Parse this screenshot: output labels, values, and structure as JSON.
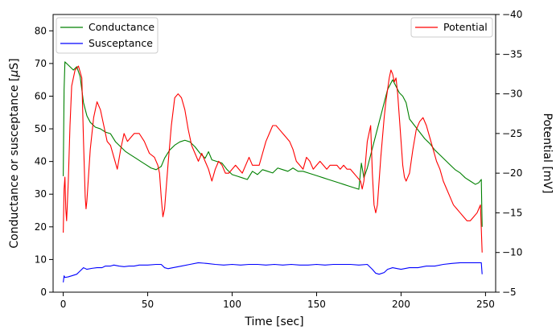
{
  "chart_data": {
    "type": "line",
    "xlabel": "Time [sec]",
    "ylabel_left": "Conductance or susceptance [",
    "ylabel_left_mu": "μ",
    "ylabel_left_end": "S]",
    "ylabel_right": "Potential [mV]",
    "xlim": [
      -6,
      256
    ],
    "ylim_left": [
      0,
      85
    ],
    "ylim_right": [
      -5,
      -40
    ],
    "right_axis_inverted": true,
    "x_ticks": [
      0,
      50,
      100,
      150,
      200,
      250
    ],
    "y_ticks_left": [
      0,
      10,
      20,
      30,
      40,
      50,
      60,
      70,
      80
    ],
    "y_ticks_right": [
      -5,
      -10,
      -15,
      -20,
      -25,
      -30,
      -35,
      -40
    ],
    "legends": [
      {
        "position": "top-left",
        "entries": [
          "Conductance",
          "Susceptance"
        ]
      },
      {
        "position": "top-right",
        "entries": [
          "Potential"
        ]
      }
    ],
    "grid": false,
    "series": [
      {
        "name": "Conductance",
        "axis": "left",
        "color": "#008000",
        "points": [
          [
            0,
            35.5
          ],
          [
            0.5,
            62
          ],
          [
            1,
            70.5
          ],
          [
            3,
            69.5
          ],
          [
            6,
            68
          ],
          [
            8,
            69
          ],
          [
            10,
            66
          ],
          [
            12,
            58
          ],
          [
            14,
            54
          ],
          [
            16,
            52
          ],
          [
            19,
            50.5
          ],
          [
            22,
            50
          ],
          [
            25,
            49
          ],
          [
            28,
            48.5
          ],
          [
            31,
            46
          ],
          [
            34,
            44.5
          ],
          [
            37,
            43
          ],
          [
            40,
            42
          ],
          [
            43,
            41
          ],
          [
            46,
            40
          ],
          [
            49,
            39
          ],
          [
            52,
            38
          ],
          [
            55,
            37.5
          ],
          [
            58,
            38.5
          ],
          [
            60,
            41
          ],
          [
            63,
            43.5
          ],
          [
            66,
            45
          ],
          [
            69,
            46
          ],
          [
            72,
            46.5
          ],
          [
            75,
            46
          ],
          [
            78,
            44.5
          ],
          [
            81,
            42.5
          ],
          [
            84,
            41
          ],
          [
            86,
            43
          ],
          [
            88,
            40.5
          ],
          [
            91,
            40
          ],
          [
            94,
            39.5
          ],
          [
            97,
            37.5
          ],
          [
            100,
            36
          ],
          [
            103,
            35.5
          ],
          [
            106,
            35
          ],
          [
            109,
            34.5
          ],
          [
            112,
            37
          ],
          [
            115,
            36
          ],
          [
            118,
            37.5
          ],
          [
            121,
            37
          ],
          [
            124,
            36.5
          ],
          [
            127,
            38
          ],
          [
            130,
            37.5
          ],
          [
            133,
            37
          ],
          [
            136,
            38
          ],
          [
            139,
            37
          ],
          [
            142,
            37
          ],
          [
            145,
            36.5
          ],
          [
            148,
            36
          ],
          [
            151,
            35.5
          ],
          [
            154,
            35
          ],
          [
            157,
            34.5
          ],
          [
            160,
            34
          ],
          [
            163,
            33.5
          ],
          [
            166,
            33
          ],
          [
            169,
            32.5
          ],
          [
            172,
            32
          ],
          [
            175,
            31.5
          ],
          [
            176.5,
            39.5
          ],
          [
            178,
            35
          ],
          [
            180,
            38
          ],
          [
            183,
            44
          ],
          [
            186,
            50
          ],
          [
            189,
            56
          ],
          [
            192,
            62
          ],
          [
            195,
            65
          ],
          [
            197,
            63
          ],
          [
            199,
            61
          ],
          [
            201,
            60
          ],
          [
            203,
            58
          ],
          [
            205,
            53
          ],
          [
            208,
            51
          ],
          [
            211,
            49
          ],
          [
            214,
            47
          ],
          [
            217,
            45.5
          ],
          [
            220,
            43.5
          ],
          [
            223,
            42
          ],
          [
            226,
            40.5
          ],
          [
            229,
            39
          ],
          [
            232,
            37.5
          ],
          [
            235,
            36.5
          ],
          [
            238,
            35
          ],
          [
            241,
            34
          ],
          [
            244,
            33
          ],
          [
            246,
            33.5
          ],
          [
            247.5,
            34.5
          ],
          [
            248,
            20
          ]
        ]
      },
      {
        "name": "Susceptance",
        "axis": "left",
        "color": "#0000ff",
        "points": [
          [
            0,
            3
          ],
          [
            0.5,
            5
          ],
          [
            1,
            4.5
          ],
          [
            3,
            4.7
          ],
          [
            5,
            5
          ],
          [
            8,
            5.5
          ],
          [
            10,
            6.5
          ],
          [
            12,
            7.5
          ],
          [
            14,
            7
          ],
          [
            17,
            7.3
          ],
          [
            20,
            7.5
          ],
          [
            23,
            7.5
          ],
          [
            25,
            8
          ],
          [
            28,
            8
          ],
          [
            30,
            8.3
          ],
          [
            33,
            8
          ],
          [
            36,
            7.8
          ],
          [
            39,
            8
          ],
          [
            42,
            8
          ],
          [
            45,
            8.3
          ],
          [
            50,
            8.3
          ],
          [
            55,
            8.5
          ],
          [
            58,
            8.5
          ],
          [
            60,
            7.5
          ],
          [
            62,
            7.2
          ],
          [
            65,
            7.5
          ],
          [
            70,
            8
          ],
          [
            75,
            8.5
          ],
          [
            80,
            9
          ],
          [
            85,
            8.8
          ],
          [
            90,
            8.5
          ],
          [
            95,
            8.3
          ],
          [
            100,
            8.5
          ],
          [
            105,
            8.3
          ],
          [
            110,
            8.5
          ],
          [
            115,
            8.5
          ],
          [
            120,
            8.3
          ],
          [
            125,
            8.5
          ],
          [
            130,
            8.3
          ],
          [
            135,
            8.5
          ],
          [
            140,
            8.3
          ],
          [
            145,
            8.3
          ],
          [
            150,
            8.5
          ],
          [
            155,
            8.3
          ],
          [
            160,
            8.5
          ],
          [
            165,
            8.5
          ],
          [
            170,
            8.5
          ],
          [
            175,
            8.3
          ],
          [
            180,
            8.5
          ],
          [
            183,
            7
          ],
          [
            185,
            5.8
          ],
          [
            187,
            5.5
          ],
          [
            190,
            6
          ],
          [
            192,
            7
          ],
          [
            195,
            7.5
          ],
          [
            198,
            7.2
          ],
          [
            200,
            7
          ],
          [
            205,
            7.5
          ],
          [
            210,
            7.5
          ],
          [
            215,
            8
          ],
          [
            220,
            8
          ],
          [
            225,
            8.5
          ],
          [
            230,
            8.8
          ],
          [
            235,
            9
          ],
          [
            240,
            9
          ],
          [
            245,
            9
          ],
          [
            247.5,
            9
          ],
          [
            248,
            5.5
          ]
        ]
      },
      {
        "name": "Potential",
        "axis": "right",
        "color": "#ff0000",
        "points": [
          [
            0,
            -12.5
          ],
          [
            0.5,
            -18
          ],
          [
            1,
            -19.5
          ],
          [
            1.5,
            -15.5
          ],
          [
            2,
            -14
          ],
          [
            3,
            -19
          ],
          [
            4,
            -26
          ],
          [
            5,
            -31
          ],
          [
            7,
            -33
          ],
          [
            9,
            -33.5
          ],
          [
            11,
            -32
          ],
          [
            12,
            -24
          ],
          [
            13,
            -17
          ],
          [
            13.5,
            -15.5
          ],
          [
            14,
            -16.5
          ],
          [
            16,
            -23
          ],
          [
            18,
            -27
          ],
          [
            20,
            -29
          ],
          [
            22,
            -28
          ],
          [
            24,
            -26
          ],
          [
            26,
            -24
          ],
          [
            28,
            -23.5
          ],
          [
            30,
            -22
          ],
          [
            32,
            -20.5
          ],
          [
            34,
            -23
          ],
          [
            36,
            -25
          ],
          [
            37,
            -24.5
          ],
          [
            38,
            -24
          ],
          [
            40,
            -24.5
          ],
          [
            42,
            -25
          ],
          [
            45,
            -25
          ],
          [
            48,
            -24
          ],
          [
            51,
            -22.5
          ],
          [
            54,
            -22
          ],
          [
            56,
            -21
          ],
          [
            57,
            -20
          ],
          [
            58,
            -17
          ],
          [
            59,
            -14.5
          ],
          [
            60,
            -15.5
          ],
          [
            62,
            -21
          ],
          [
            64,
            -26
          ],
          [
            66,
            -29.5
          ],
          [
            68,
            -30
          ],
          [
            70,
            -29.5
          ],
          [
            72,
            -28
          ],
          [
            74,
            -25.5
          ],
          [
            76,
            -23.5
          ],
          [
            78,
            -22.5
          ],
          [
            80,
            -21.5
          ],
          [
            82,
            -22.5
          ],
          [
            84,
            -21.5
          ],
          [
            86,
            -20.5
          ],
          [
            88,
            -19
          ],
          [
            90,
            -20.5
          ],
          [
            92,
            -21.5
          ],
          [
            94,
            -21
          ],
          [
            96,
            -20
          ],
          [
            98,
            -20
          ],
          [
            100,
            -20.5
          ],
          [
            102,
            -21
          ],
          [
            104,
            -20.5
          ],
          [
            106,
            -20
          ],
          [
            108,
            -21
          ],
          [
            110,
            -22
          ],
          [
            112,
            -21
          ],
          [
            114,
            -21
          ],
          [
            116,
            -21
          ],
          [
            118,
            -22.5
          ],
          [
            120,
            -24
          ],
          [
            122,
            -25
          ],
          [
            124,
            -26
          ],
          [
            126,
            -26
          ],
          [
            128,
            -25.5
          ],
          [
            130,
            -25
          ],
          [
            132,
            -24.5
          ],
          [
            134,
            -24
          ],
          [
            136,
            -23
          ],
          [
            138,
            -21.5
          ],
          [
            140,
            -21
          ],
          [
            142,
            -20.5
          ],
          [
            144,
            -22
          ],
          [
            146,
            -21.5
          ],
          [
            148,
            -20.5
          ],
          [
            150,
            -21
          ],
          [
            152,
            -21.5
          ],
          [
            154,
            -21
          ],
          [
            156,
            -20.5
          ],
          [
            158,
            -21
          ],
          [
            160,
            -21
          ],
          [
            162,
            -21
          ],
          [
            164,
            -20.5
          ],
          [
            166,
            -21
          ],
          [
            168,
            -20.5
          ],
          [
            170,
            -20.5
          ],
          [
            172,
            -20
          ],
          [
            174,
            -19.5
          ],
          [
            176,
            -19
          ],
          [
            177,
            -18
          ],
          [
            178,
            -19
          ],
          [
            180,
            -24
          ],
          [
            182,
            -26
          ],
          [
            183,
            -20
          ],
          [
            184,
            -16
          ],
          [
            185,
            -15
          ],
          [
            186,
            -16
          ],
          [
            188,
            -22
          ],
          [
            190,
            -27
          ],
          [
            191,
            -29
          ],
          [
            192,
            -30.5
          ],
          [
            193,
            -32
          ],
          [
            194,
            -33
          ],
          [
            195,
            -32.5
          ],
          [
            196,
            -31.5
          ],
          [
            197,
            -32
          ],
          [
            198,
            -30
          ],
          [
            199,
            -27
          ],
          [
            200,
            -24
          ],
          [
            201,
            -21
          ],
          [
            202,
            -19.5
          ],
          [
            203,
            -19
          ],
          [
            205,
            -20
          ],
          [
            207,
            -23
          ],
          [
            209,
            -25.5
          ],
          [
            211,
            -26.5
          ],
          [
            213,
            -27
          ],
          [
            215,
            -26
          ],
          [
            217,
            -24.5
          ],
          [
            219,
            -23
          ],
          [
            221,
            -21.5
          ],
          [
            223,
            -20.5
          ],
          [
            225,
            -19
          ],
          [
            227,
            -18
          ],
          [
            229,
            -17
          ],
          [
            231,
            -16
          ],
          [
            233,
            -15.5
          ],
          [
            235,
            -15
          ],
          [
            237,
            -14.5
          ],
          [
            239,
            -14
          ],
          [
            241,
            -14
          ],
          [
            243,
            -14.5
          ],
          [
            245,
            -15
          ],
          [
            246,
            -15.5
          ],
          [
            247,
            -16
          ],
          [
            247.5,
            -13
          ],
          [
            248,
            -10
          ]
        ]
      }
    ]
  }
}
